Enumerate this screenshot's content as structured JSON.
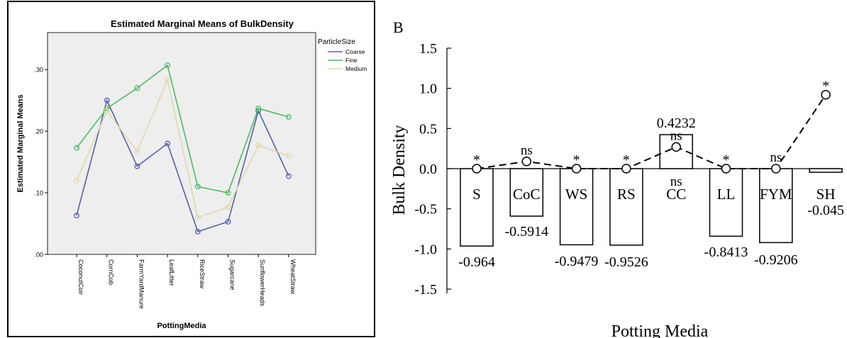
{
  "chart_data": [
    {
      "type": "line",
      "title": "Estimated Marginal Means of BulkDensity",
      "xlabel": "PottingMedia",
      "ylabel": "Estimated Marginal Means",
      "ylim": [
        0,
        0.36
      ],
      "yticks": [
        ".00",
        ".10",
        ".20",
        ".30"
      ],
      "yticks_values": [
        0,
        0.1,
        0.2,
        0.3
      ],
      "categories": [
        "CoconutCoir",
        "CornCob",
        "FarmYardManure",
        "LeafLitter",
        "RiceStraw",
        "Sugarcane",
        "SunflowerHeads",
        "WheatStraw"
      ],
      "legend_title": "ParticleSize",
      "legend_position": "right",
      "series": [
        {
          "name": "Coarse",
          "color": "#5461ad",
          "values": [
            0.063,
            0.25,
            0.143,
            0.18,
            0.037,
            0.053,
            0.233,
            0.127
          ]
        },
        {
          "name": "Fine",
          "color": "#4dbb62",
          "values": [
            0.173,
            0.237,
            0.27,
            0.307,
            0.11,
            0.1,
            0.237,
            0.223
          ]
        },
        {
          "name": "Medium",
          "color": "#e1d8aa",
          "values": [
            0.12,
            0.233,
            0.167,
            0.283,
            0.06,
            0.077,
            0.177,
            0.16
          ]
        }
      ],
      "background": "#eeeeee"
    },
    {
      "type": "bar",
      "panel_label": "B",
      "xlabel": "Potting Media",
      "ylabel": "Bulk Density",
      "ylim": [
        -1.5,
        1.5
      ],
      "yticks": [
        "1.5",
        "1.0",
        "0.5",
        "0.0",
        "-0.5",
        "-1.0",
        "-1.5"
      ],
      "yticks_values": [
        1.5,
        1.0,
        0.5,
        0.0,
        -0.5,
        -1.0,
        -1.5
      ],
      "categories": [
        "S",
        "CoC",
        "WS",
        "RS",
        "CC",
        "LL",
        "FYM",
        "SH"
      ],
      "values": [
        -0.964,
        -0.5914,
        -0.9479,
        -0.9526,
        0.4232,
        -0.8413,
        -0.9206,
        -0.045
      ],
      "value_labels": [
        "-0.964",
        "-0.5914",
        "-0.9479",
        "-0.9526",
        "0.4232",
        "-0.8413",
        "-0.9206",
        "-0.045"
      ],
      "line_values": [
        0,
        0.09,
        0,
        0,
        0.27,
        0,
        0,
        0.92
      ],
      "significance": [
        "*",
        "ns",
        "*",
        "*",
        "ns",
        "*",
        "ns",
        "*"
      ]
    }
  ]
}
